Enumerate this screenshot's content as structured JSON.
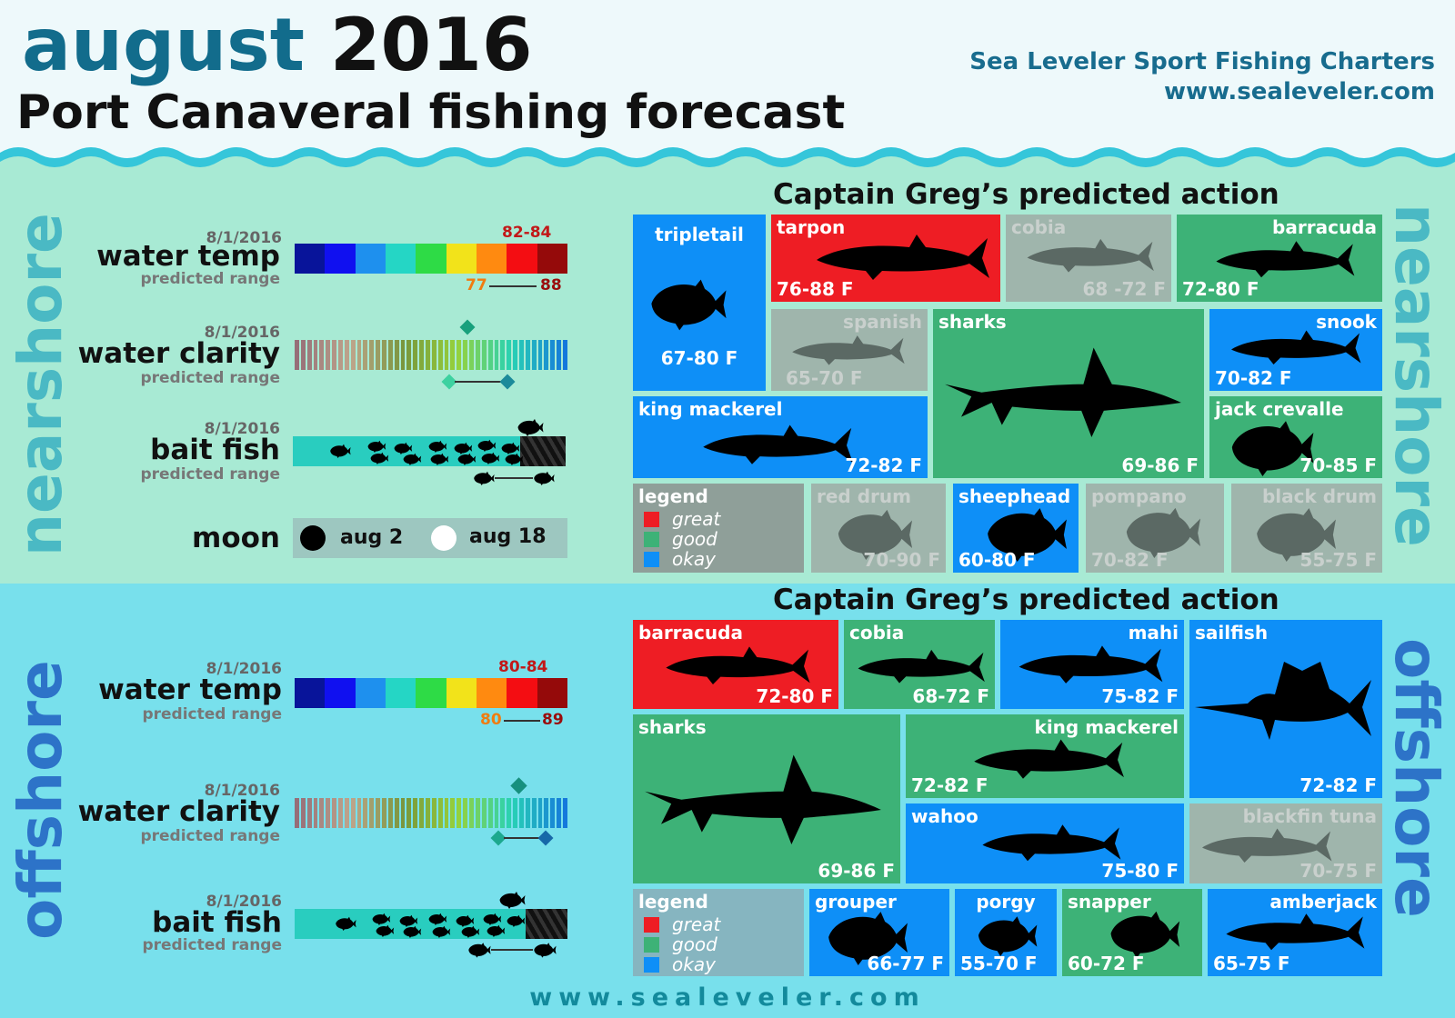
{
  "header": {
    "title_month": "august",
    "title_year": "2016",
    "subtitle": "Port Canaveral fishing forecast",
    "brand_name": "Sea Leveler Sport Fishing Charters",
    "brand_url": "www.sealeveler.com"
  },
  "colors": {
    "great": "#ee1d24",
    "good": "#3db277",
    "okay": "#0e8ff7",
    "gray": "#9fb5ac"
  },
  "nearshore": {
    "label": "nearshore",
    "water_temp": {
      "date": "8/1/2016",
      "label": "water temp",
      "sub": "predicted range",
      "range_top": "82-84",
      "low": "77",
      "high": "88"
    },
    "water_clarity": {
      "date": "8/1/2016",
      "label": "water clarity",
      "sub": "predicted range"
    },
    "bait_fish": {
      "date": "8/1/2016",
      "label": "bait fish",
      "sub": "predicted range"
    },
    "moon": {
      "label": "moon",
      "new": "aug 2",
      "full": "aug 18"
    },
    "action_title": "Captain Greg’s predicted action",
    "legend": {
      "title": "legend",
      "great": "great",
      "good": "good",
      "okay": "okay"
    },
    "fish": [
      {
        "name": "tripletail",
        "temp": "67-80 F",
        "rating": "okay"
      },
      {
        "name": "tarpon",
        "temp": "76-88 F",
        "rating": "great"
      },
      {
        "name": "cobia",
        "temp": "68 -72 F",
        "rating": "none"
      },
      {
        "name": "barracuda",
        "temp": "72-80 F",
        "rating": "good"
      },
      {
        "name": "spanish",
        "temp": "65-70 F",
        "rating": "none"
      },
      {
        "name": "sharks",
        "temp": "69-86 F",
        "rating": "good"
      },
      {
        "name": "snook",
        "temp": "70-82 F",
        "rating": "okay"
      },
      {
        "name": "king mackerel",
        "temp": "72-82 F",
        "rating": "okay"
      },
      {
        "name": "jack crevalle",
        "temp": "70-85 F",
        "rating": "good"
      },
      {
        "name": "red drum",
        "temp": "70-90 F",
        "rating": "none"
      },
      {
        "name": "sheephead",
        "temp": "60-80 F",
        "rating": "okay"
      },
      {
        "name": "pompano",
        "temp": "70-82 F",
        "rating": "none"
      },
      {
        "name": "black drum",
        "temp": "55-75 F",
        "rating": "none"
      }
    ]
  },
  "offshore": {
    "label": "offshore",
    "water_temp": {
      "date": "8/1/2016",
      "label": "water temp",
      "sub": "predicted range",
      "range_top": "80-84",
      "low": "80",
      "high": "89"
    },
    "water_clarity": {
      "date": "8/1/2016",
      "label": "water clarity",
      "sub": "predicted range"
    },
    "bait_fish": {
      "date": "8/1/2016",
      "label": "bait fish",
      "sub": "predicted range"
    },
    "action_title": "Captain Greg’s predicted action",
    "legend": {
      "title": "legend",
      "great": "great",
      "good": "good",
      "okay": "okay"
    },
    "fish": [
      {
        "name": "barracuda",
        "temp": "72-80 F",
        "rating": "great"
      },
      {
        "name": "cobia",
        "temp": "68-72 F",
        "rating": "good"
      },
      {
        "name": "mahi",
        "temp": "75-82 F",
        "rating": "okay"
      },
      {
        "name": "sailfish",
        "temp": "72-82 F",
        "rating": "okay"
      },
      {
        "name": "sharks",
        "temp": "69-86 F",
        "rating": "good"
      },
      {
        "name": "king mackerel",
        "temp": "72-82 F",
        "rating": "good"
      },
      {
        "name": "wahoo",
        "temp": "75-80 F",
        "rating": "okay"
      },
      {
        "name": "blackfin tuna",
        "temp": "70-75 F",
        "rating": "none"
      },
      {
        "name": "grouper",
        "temp": "66-77 F",
        "rating": "okay"
      },
      {
        "name": "porgy",
        "temp": "55-70 F",
        "rating": "okay"
      },
      {
        "name": "snapper",
        "temp": "60-72 F",
        "rating": "good"
      },
      {
        "name": "amberjack",
        "temp": "65-75 F",
        "rating": "okay"
      }
    ]
  },
  "footer": "www.sealeveler.com"
}
